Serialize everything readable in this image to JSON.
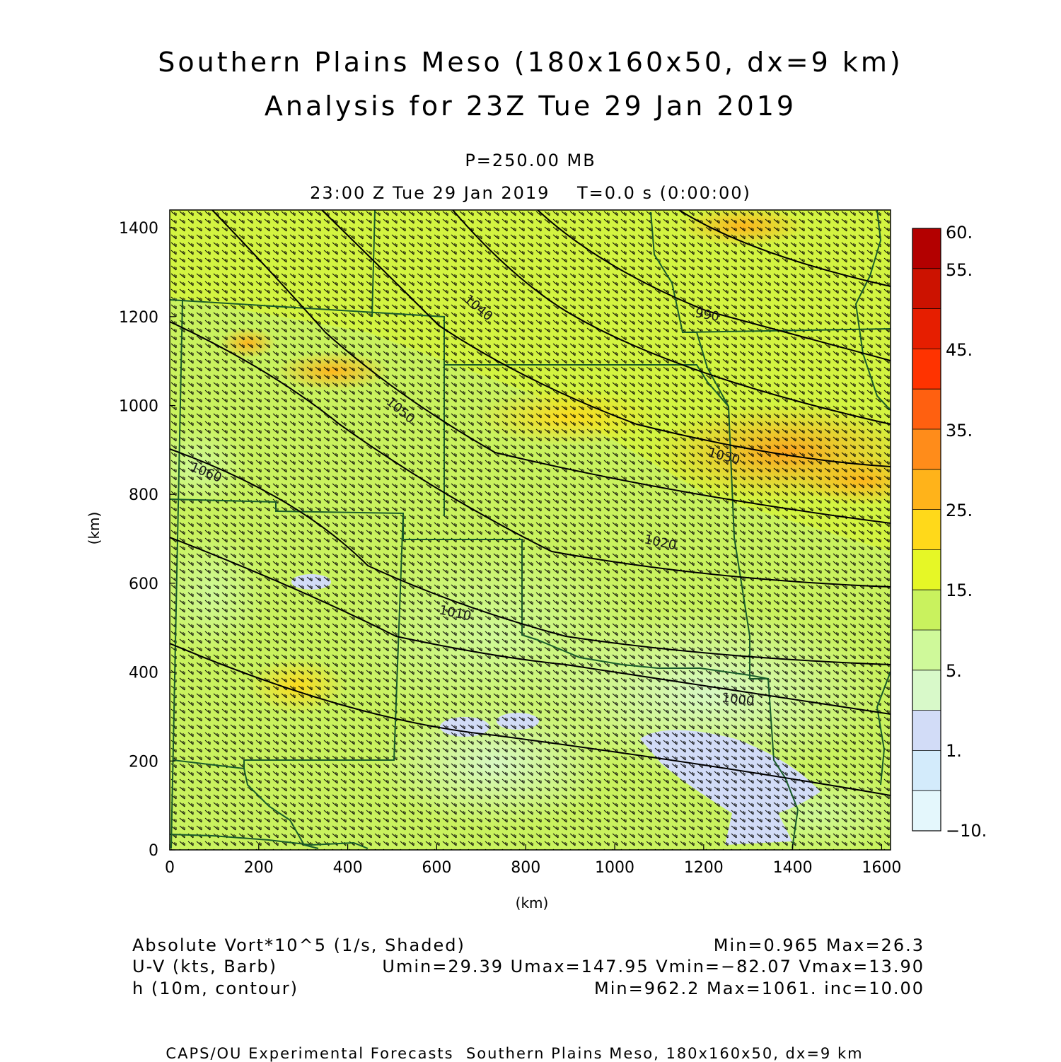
{
  "title_line1": "Southern Plains Meso (180x160x50, dx=9 km)",
  "title_line2": "Analysis for 23Z Tue 29 Jan 2019",
  "level": "P=250.00 MB",
  "valid_time": "23:00 Z Tue 29 Jan 2019    T=0.0 s (0:00:00)",
  "x_axis": {
    "label": "(km)",
    "ticks": [
      "0",
      "200",
      "400",
      "600",
      "800",
      "1000",
      "1200",
      "1400",
      "1600"
    ],
    "values": [
      0,
      200,
      400,
      600,
      800,
      1000,
      1200,
      1400,
      1600
    ],
    "range": [
      0,
      1620
    ]
  },
  "y_axis": {
    "label": "(km)",
    "ticks": [
      "0",
      "200",
      "400",
      "600",
      "800",
      "1000",
      "1200",
      "1400"
    ],
    "values": [
      0,
      200,
      400,
      600,
      800,
      1000,
      1200,
      1400
    ],
    "range": [
      0,
      1440
    ]
  },
  "colorbar": {
    "labels": [
      "60.",
      "55.",
      "45.",
      "35.",
      "25.",
      "15.",
      "5.",
      "1.",
      "−10."
    ],
    "colors": [
      "#b30000",
      "#cc1200",
      "#e61e00",
      "#ff3300",
      "#ff6010",
      "#ff8c1a",
      "#ffb31a",
      "#ffd91a",
      "#e6f726",
      "#c9f25e",
      "#cff99a",
      "#d8f9c9",
      "#d2dcf7",
      "#d3ebfb",
      "#e4f7fc"
    ]
  },
  "contour_labels": [
    "1060",
    "1050",
    "1040",
    "1030",
    "1020",
    "1010",
    "1000",
    "990"
  ],
  "legend": {
    "shaded_name": "Absolute Vort*10^5 (1/s, Shaded)",
    "shaded_range": "Min=0.965 Max=26.3",
    "barb_name": "U-V (kts, Barb)",
    "barb_range": "Umin=29.39 Umax=147.95 Vmin=−82.07 Vmax=13.90",
    "contour_name": "h (10m, contour)",
    "contour_range": "Min=962.2 Max=1061. inc=10.00"
  },
  "credit": "CAPS/OU Experimental Forecasts  Southern Plains Meso, 180x160x50, dx=9 km",
  "colors": {
    "boundary": "#1a5c2a",
    "contour": "#000000",
    "barb": "#000000"
  }
}
